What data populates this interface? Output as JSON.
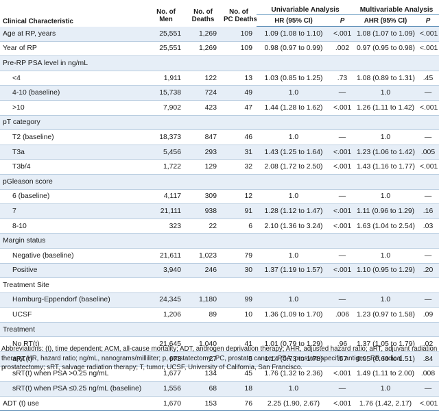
{
  "header": {
    "characteristic": "Clinical Characteristic",
    "men": [
      "No. of",
      "Men"
    ],
    "deaths": [
      "No. of",
      "Deaths"
    ],
    "pc_deaths": [
      "No. of",
      "PC Deaths"
    ],
    "univariable": "Univariable Analysis",
    "multivariable": "Multivariable Analysis",
    "hr": "HR (95% CI)",
    "p": "P",
    "ahr": "AHR (95% CI)",
    "p2": "P"
  },
  "rows": [
    {
      "type": "data",
      "label": "Age at RP, years",
      "indent": false,
      "men": "25,551",
      "deaths": "1,269",
      "pc": "109",
      "hr": "1.09 (1.08 to 1.10)",
      "p": "<.001",
      "ahr": "1.08 (1.07 to 1.09)",
      "p2": "<.001"
    },
    {
      "type": "data",
      "label": "Year of RP",
      "indent": false,
      "men": "25,551",
      "deaths": "1,269",
      "pc": "109",
      "hr": "0.98 (0.97 to 0.99)",
      "p": ".002",
      "ahr": "0.97 (0.95 to 0.98)",
      "p2": "<.001"
    },
    {
      "type": "section",
      "label": "Pre-RP PSA level in ng/mL"
    },
    {
      "type": "data",
      "label": "<4",
      "indent": true,
      "men": "1,911",
      "deaths": "122",
      "pc": "13",
      "hr": "1.03 (0.85 to 1.25)",
      "p": ".73",
      "ahr": "1.08 (0.89 to 1.31)",
      "p2": ".45"
    },
    {
      "type": "data",
      "label": "4-10 (baseline)",
      "indent": true,
      "men": "15,738",
      "deaths": "724",
      "pc": "49",
      "hr": "1.0",
      "p": "—",
      "ahr": "1.0",
      "p2": "—"
    },
    {
      "type": "data",
      "label": ">10",
      "indent": true,
      "men": "7,902",
      "deaths": "423",
      "pc": "47",
      "hr": "1.44 (1.28 to 1.62)",
      "p": "<.001",
      "ahr": "1.26 (1.11 to 1.42)",
      "p2": "<.001"
    },
    {
      "type": "section",
      "label": "pT category"
    },
    {
      "type": "data",
      "label": "T2 (baseline)",
      "indent": true,
      "men": "18,373",
      "deaths": "847",
      "pc": "46",
      "hr": "1.0",
      "p": "—",
      "ahr": "1.0",
      "p2": "—"
    },
    {
      "type": "data",
      "label": "T3a",
      "indent": true,
      "men": "5,456",
      "deaths": "293",
      "pc": "31",
      "hr": "1.43 (1.25 to 1.64)",
      "p": "<.001",
      "ahr": "1.23 (1.06 to 1.42)",
      "p2": ".005"
    },
    {
      "type": "data",
      "label": "T3b/4",
      "indent": true,
      "men": "1,722",
      "deaths": "129",
      "pc": "32",
      "hr": "2.08 (1.72 to 2.50)",
      "p": "<.001",
      "ahr": "1.43 (1.16 to 1.77)",
      "p2": "<.001"
    },
    {
      "type": "section",
      "label": "pGleason score"
    },
    {
      "type": "data",
      "label": "6 (baseline)",
      "indent": true,
      "men": "4,117",
      "deaths": "309",
      "pc": "12",
      "hr": "1.0",
      "p": "—",
      "ahr": "1.0",
      "p2": "—"
    },
    {
      "type": "data",
      "label": "7",
      "indent": true,
      "men": "21,111",
      "deaths": "938",
      "pc": "91",
      "hr": "1.28 (1.12 to 1.47)",
      "p": "<.001",
      "ahr": "1.11 (0.96 to 1.29)",
      "p2": ".16"
    },
    {
      "type": "data",
      "label": "8-10",
      "indent": true,
      "men": "323",
      "deaths": "22",
      "pc": "6",
      "hr": "2.10 (1.36 to 3.24)",
      "p": "<.001",
      "ahr": "1.63 (1.04 to 2.54)",
      "p2": ".03"
    },
    {
      "type": "section",
      "label": "Margin status"
    },
    {
      "type": "data",
      "label": "Negative (baseline)",
      "indent": true,
      "men": "21,611",
      "deaths": "1,023",
      "pc": "79",
      "hr": "1.0",
      "p": "—",
      "ahr": "1.0",
      "p2": "—"
    },
    {
      "type": "data",
      "label": "Positive",
      "indent": true,
      "men": "3,940",
      "deaths": "246",
      "pc": "30",
      "hr": "1.37 (1.19 to 1.57)",
      "p": "<.001",
      "ahr": "1.10 (0.95 to 1.29)",
      "p2": ".20"
    },
    {
      "type": "section",
      "label": "Treatment Site"
    },
    {
      "type": "data",
      "label": "Hamburg-Eppendorf (baseline)",
      "indent": true,
      "men": "24,345",
      "deaths": "1,180",
      "pc": "99",
      "hr": "1.0",
      "p": "—",
      "ahr": "1.0",
      "p2": "—"
    },
    {
      "type": "data",
      "label": "UCSF",
      "indent": true,
      "men": "1,206",
      "deaths": "89",
      "pc": "10",
      "hr": "1.36 (1.09 to 1.70)",
      "p": ".006",
      "ahr": "1.23 (0.97 to 1.58)",
      "p2": ".09"
    },
    {
      "type": "section",
      "label": "Treatment"
    },
    {
      "type": "data",
      "label": "No RT(t)",
      "indent": true,
      "men": "21,645",
      "deaths": "1,040",
      "pc": "41",
      "hr": "1.01 (0.79 to 1.29)",
      "p": ".96",
      "ahr": "1.37 (1.05 to 1.79)",
      "p2": ".02"
    },
    {
      "type": "data",
      "label": "aRT(t)",
      "indent": true,
      "men": "673",
      "deaths": "27",
      "pc": "5",
      "hr": "1.14 (0.73 to 1.78)",
      "p": ".57",
      "ahr": "0.95 (0.60 to 1.51)",
      "p2": ".84"
    },
    {
      "type": "data",
      "label": "sRT(t) when PSA >0.25 ng/mL",
      "indent": true,
      "men": "1,677",
      "deaths": "134",
      "pc": "45",
      "hr": "1.76 (1.32 to 2.36)",
      "p": "<.001",
      "ahr": "1.49 (1.11 to 2.00)",
      "p2": ".008"
    },
    {
      "type": "data",
      "label": "sRT(t) when PSA ≤0.25 ng/mL (baseline)",
      "indent": true,
      "men": "1,556",
      "deaths": "68",
      "pc": "18",
      "hr": "1.0",
      "p": "—",
      "ahr": "1.0",
      "p2": "—"
    },
    {
      "type": "data",
      "label": "ADT (t) use",
      "indent": false,
      "men": "1,670",
      "deaths": "153",
      "pc": "76",
      "hr": "2.25 (1.90, 2.67)",
      "p": "<.001",
      "ahr": "1.76 (1.42, 2.17)",
      "p2": "<.001"
    }
  ],
  "footnote": "Abbreviations: (t), time dependent; ACM, all-cause mortality; ADT, androgen deprivation therapy; AHR, adjusted hazard ratio; aRT, adjuvant radiation therapy; HR, hazard ratio; ng/mL, nanograms/milliliter; p, prostatectomy; PC, prostate cancer; PSA, prostate-specific antigen; RP, radical prostatectomy; sRT, salvage radiation therapy; T, tumor, UCSF, University of California, San Francisco."
}
